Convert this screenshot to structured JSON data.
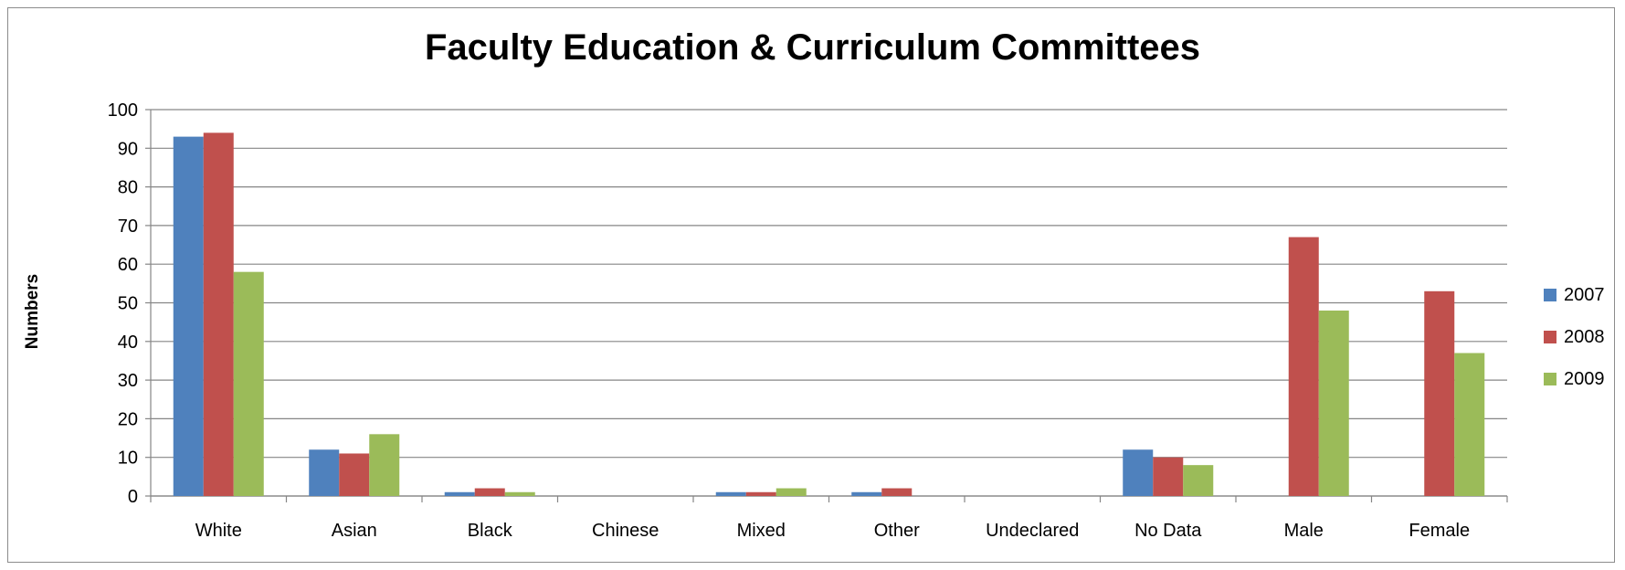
{
  "chart_data": {
    "type": "bar",
    "title": "Faculty Education & Curriculum Committees",
    "xlabel": "",
    "ylabel": "Numbers",
    "ylim": [
      0,
      100
    ],
    "yticks": [
      0,
      10,
      20,
      30,
      40,
      50,
      60,
      70,
      80,
      90,
      100
    ],
    "grid": true,
    "legend_position": "right",
    "categories": [
      "White",
      "Asian",
      "Black",
      "Chinese",
      "Mixed",
      "Other",
      "Undeclared",
      "No Data",
      "Male",
      "Female"
    ],
    "series": [
      {
        "name": "2007",
        "color": "#4f81bd",
        "values": [
          93,
          12,
          1,
          0,
          1,
          1,
          0,
          12,
          0,
          0
        ]
      },
      {
        "name": "2008",
        "color": "#c0504d",
        "values": [
          94,
          11,
          2,
          0,
          1,
          2,
          0,
          10,
          67,
          53
        ]
      },
      {
        "name": "2009",
        "color": "#9bbb59",
        "values": [
          58,
          16,
          1,
          0,
          2,
          0,
          0,
          8,
          48,
          37
        ]
      }
    ]
  }
}
